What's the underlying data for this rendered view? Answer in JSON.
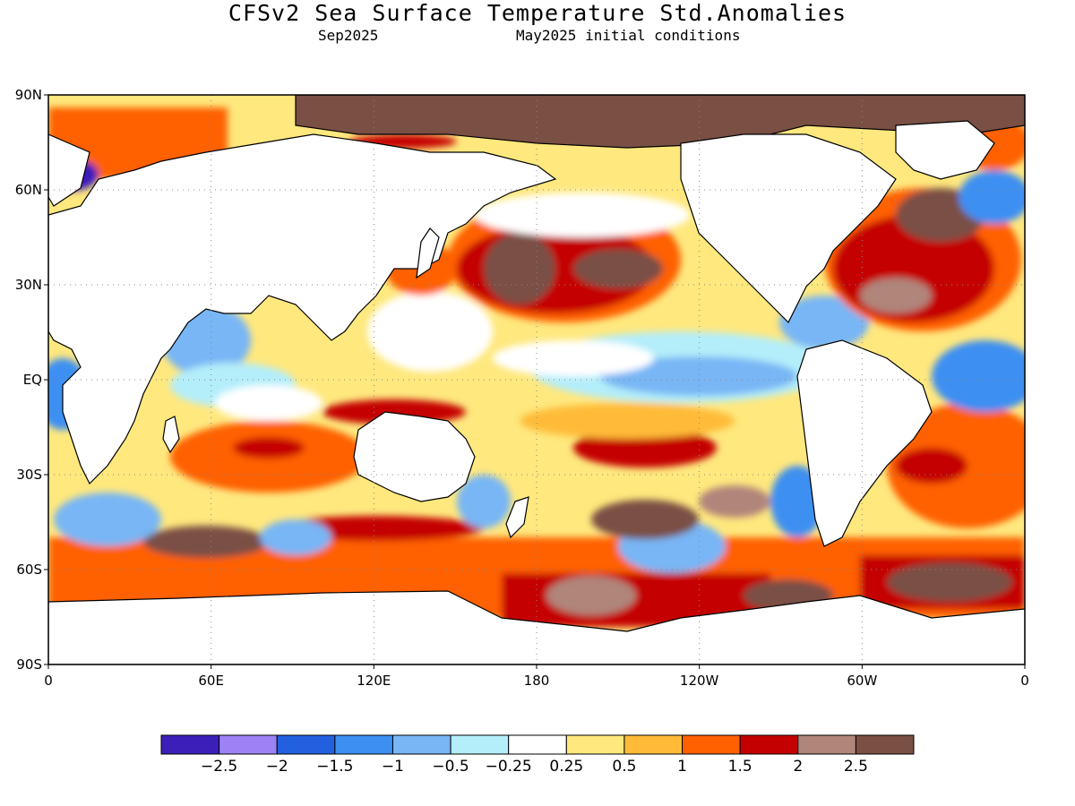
{
  "title": "CFSv2 Sea Surface Temperature Std.Anomalies",
  "subtitle_left": "Sep2025",
  "subtitle_right": "May2025 initial conditions",
  "map": {
    "lon_range": [
      0,
      360
    ],
    "lat_range": [
      -90,
      90
    ],
    "lat_ticks": [
      {
        "value": 90,
        "label": "90N"
      },
      {
        "value": 60,
        "label": "60N"
      },
      {
        "value": 30,
        "label": "30N"
      },
      {
        "value": 0,
        "label": "EQ"
      },
      {
        "value": -30,
        "label": "30S"
      },
      {
        "value": -60,
        "label": "60S"
      },
      {
        "value": -90,
        "label": "90S"
      }
    ],
    "lon_ticks": [
      {
        "value": 0,
        "label": "0"
      },
      {
        "value": 60,
        "label": "60E"
      },
      {
        "value": 120,
        "label": "120E"
      },
      {
        "value": 180,
        "label": "180"
      },
      {
        "value": 240,
        "label": "120W"
      },
      {
        "value": 300,
        "label": "60W"
      },
      {
        "value": 360,
        "label": "0"
      }
    ],
    "gridlines": "dotted",
    "land_color": "#ffffff",
    "ocean_base_color": "#ffe87e"
  },
  "colorbar": {
    "colors": [
      "#3b1fb8",
      "#9c82f5",
      "#2360e0",
      "#3d8ff2",
      "#78b6f5",
      "#b4eefa",
      "#ffffff",
      "#ffe87e",
      "#ffbb38",
      "#ff6000",
      "#c40000",
      "#b0857a",
      "#7a4f44"
    ],
    "labels": [
      "−2.5",
      "−2",
      "−1.5",
      "−1",
      "−0.5",
      "−0.25",
      "0.25",
      "0.5",
      "1",
      "1.5",
      "2",
      "2.5"
    ]
  }
}
